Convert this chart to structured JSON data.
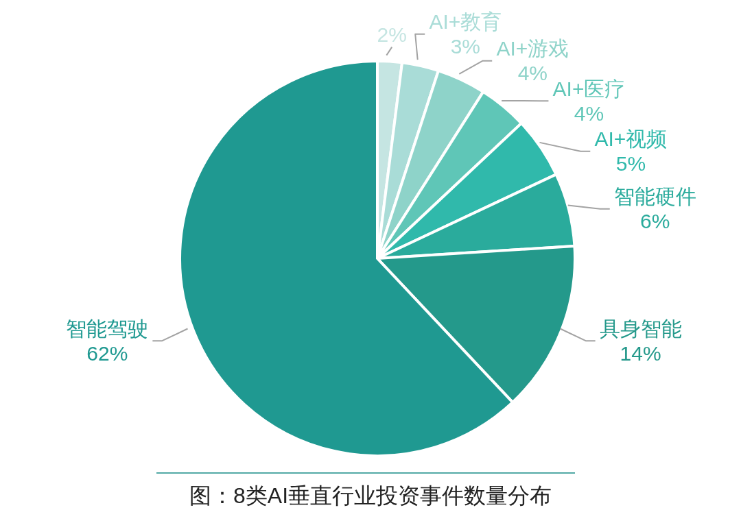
{
  "chart_data": {
    "type": "pie",
    "annotations": [
      "图：8类AI垂直行业投资事件数量分布"
    ],
    "categories": [
      null,
      "AI+教育",
      "AI+游戏",
      "AI+医疗",
      "AI+视频",
      "智能硬件",
      "具身智能",
      "智能驾驶"
    ],
    "values": [
      2,
      3,
      4,
      4,
      5,
      6,
      14,
      62
    ],
    "value_labels": [
      "2%",
      "3%",
      "4%",
      "4%",
      "5%",
      "6%",
      "14%",
      "62%"
    ],
    "colors": [
      "#c5e5e2",
      "#a9dcd7",
      "#8ed3c9",
      "#5fc6b7",
      "#30b9ab",
      "#2aab9c",
      "#24998b",
      "#1f9991"
    ]
  }
}
